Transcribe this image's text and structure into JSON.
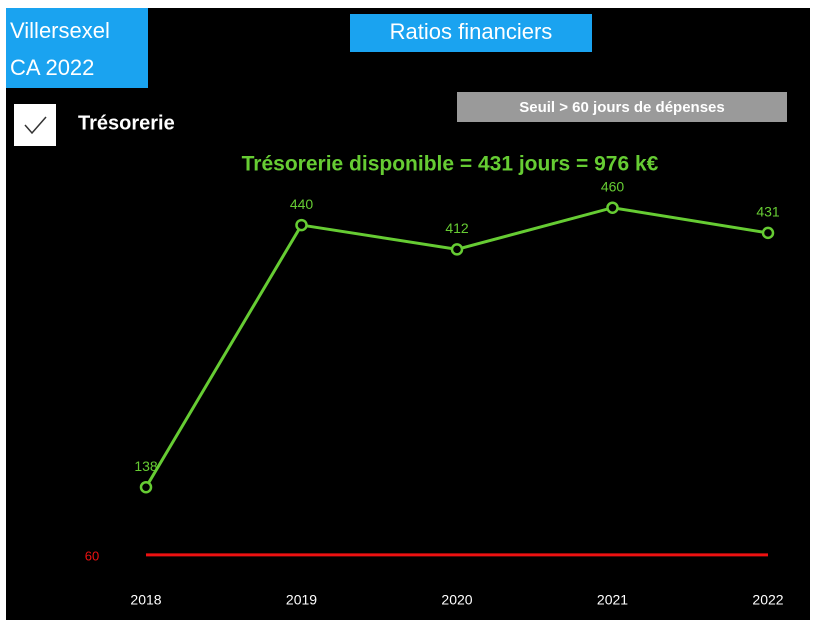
{
  "header": {
    "entity": "Villersexel",
    "period": "CA 2022",
    "section": "Ratios financiers"
  },
  "toggle": {
    "label": "Trésorerie",
    "checked": true
  },
  "badge": "Seuil > 60 jours de dépenses",
  "chart_data": {
    "type": "line",
    "title": "Trésorerie disponible = 431 jours = 976 k€",
    "categories": [
      "2018",
      "2019",
      "2020",
      "2021",
      "2022"
    ],
    "series": [
      {
        "name": "Trésorerie",
        "color": "#66cc33",
        "values": [
          138,
          440,
          412,
          460,
          431
        ]
      }
    ],
    "threshold": {
      "value": 60,
      "color": "#ee1111"
    },
    "ylim": [
      0,
      500
    ]
  }
}
